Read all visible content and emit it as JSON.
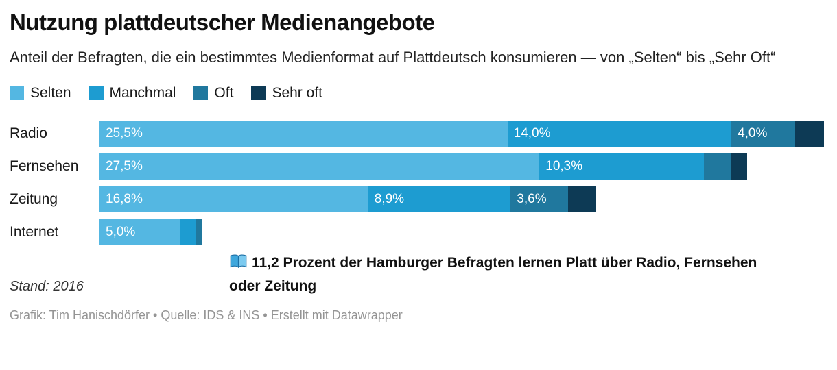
{
  "title": "Nutzung plattdeutscher Medienangebote",
  "subtitle": "Anteil der Befragten, die ein bestimmtes Medienformat auf Plattdeutsch konsumieren — von „Selten“ bis „Sehr Oft“",
  "annotation": {
    "icon": "open-book",
    "text": "11,2 Prozent der Hamburger Befragten lernen Platt über Radio, Fernsehen oder Zeitung"
  },
  "stand": "Stand: 2016",
  "footer": "Grafik: Tim Hanischdörfer • Quelle: IDS & INS • Erstellt mit Datawrapper",
  "chart_data": {
    "type": "bar",
    "orientation": "horizontal-stacked",
    "title": "Nutzung plattdeutscher Medienangebote",
    "categories": [
      "Radio",
      "Fernsehen",
      "Zeitung",
      "Internet"
    ],
    "series": [
      {
        "name": "Selten",
        "color": "#54b7e2",
        "values": [
          25.5,
          27.5,
          16.8,
          5.0
        ]
      },
      {
        "name": "Manchmal",
        "color": "#1d9cd1",
        "values": [
          14.0,
          10.3,
          8.9,
          1.0
        ]
      },
      {
        "name": "Oft",
        "color": "#20789e",
        "values": [
          4.0,
          1.7,
          3.6,
          0.4
        ]
      },
      {
        "name": "Sehr oft",
        "color": "#0d3a55",
        "values": [
          1.8,
          1.0,
          1.7,
          0.0
        ]
      }
    ],
    "segment_labels": [
      [
        "25,5%",
        "14,0%",
        "4,0%",
        ""
      ],
      [
        "27,5%",
        "10,3%",
        "",
        ""
      ],
      [
        "16,8%",
        "8,9%",
        "3,6%",
        ""
      ],
      [
        "5,0%",
        "",
        "",
        ""
      ]
    ],
    "xmax": 45.5,
    "xlabel": "",
    "ylabel": "",
    "grid": false,
    "legend_position": "top"
  }
}
